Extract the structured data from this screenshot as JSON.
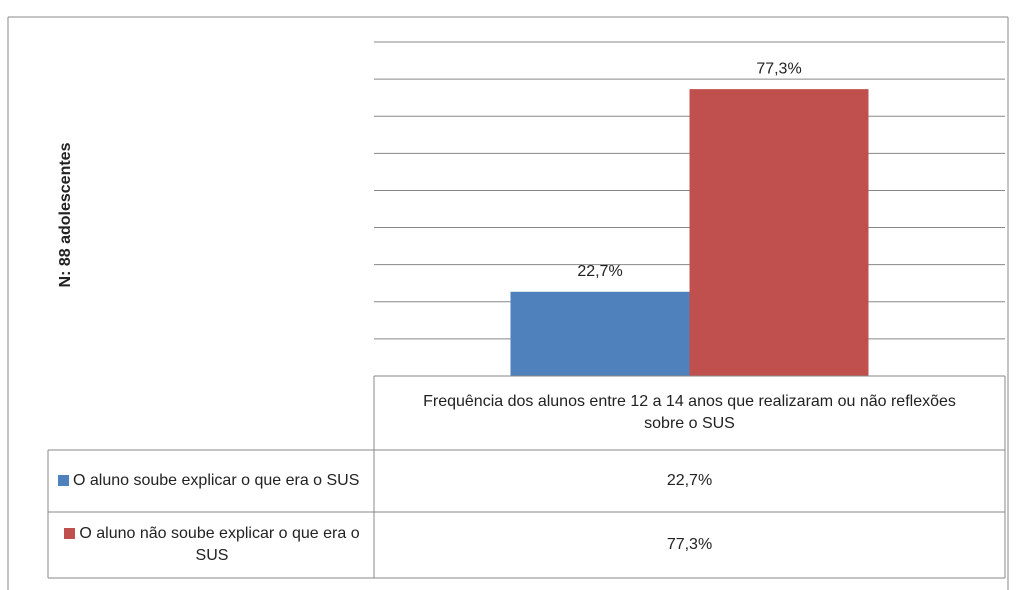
{
  "chart_data": {
    "type": "bar",
    "y_axis_label": "N:  88 adolescentes",
    "categories": [
      "Frequência dos alunos entre 12 a 14 anos que realizaram ou não reflexões sobre o SUS"
    ],
    "series": [
      {
        "name": "O aluno soube explicar o que era o SUS",
        "color": "#4f81bd",
        "values": [
          22.7
        ],
        "value_labels": [
          "22,7%"
        ]
      },
      {
        "name": "O aluno não soube explicar o que era o SUS",
        "color": "#c0504d",
        "values": [
          77.3
        ],
        "value_labels": [
          "77,3%"
        ]
      }
    ],
    "ylim": [
      0,
      90
    ],
    "yticks": [
      0,
      10,
      20,
      30,
      40,
      50,
      60,
      70,
      80,
      90
    ],
    "grid": true
  }
}
